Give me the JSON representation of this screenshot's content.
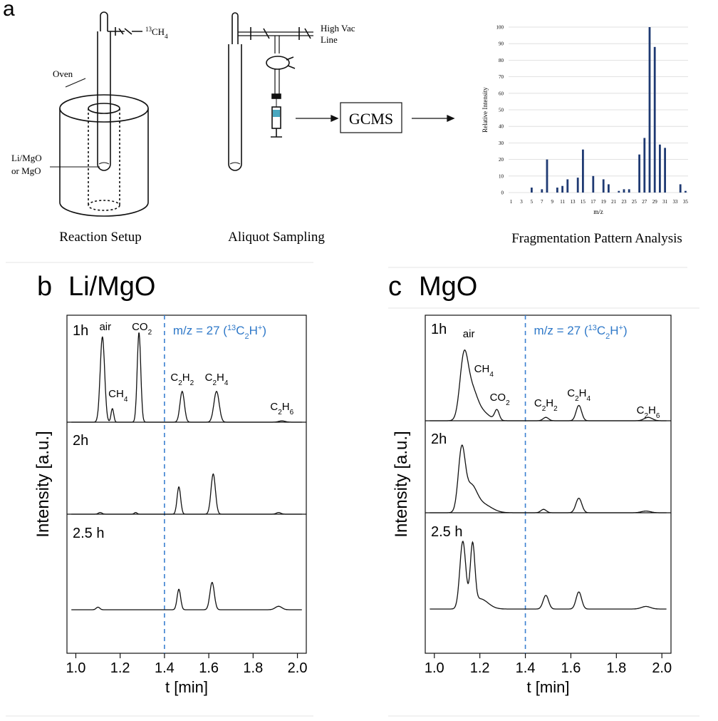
{
  "panel_a": {
    "letter": "a",
    "setup": {
      "gas_label_sup": "13",
      "gas_label_base": "CH",
      "gas_label_sub": "4",
      "oven_label": "Oven",
      "catalyst_line1": "Li/MgO",
      "catalyst_line2": "or MgO",
      "caption": "Reaction Setup"
    },
    "sampling": {
      "vac_line1": "High Vac",
      "vac_line2": "Line",
      "caption": "Aliquot Sampling"
    },
    "gcms_label": "GCMS",
    "fragmentation_caption": "Fragmentation Pattern Analysis"
  },
  "panel_b": {
    "letter": "b",
    "title": "Li/MgO",
    "annotation": "m/z = 27 (13C2H+)"
  },
  "panel_c": {
    "letter": "c",
    "title": "MgO",
    "annotation": "m/z = 27 (13C2H+)"
  },
  "chart_data": [
    {
      "id": "fragmentation",
      "type": "bar",
      "xlabel": "m/z",
      "ylabel": "Relative Intensity",
      "ylim": [
        0,
        100
      ],
      "yticks": [
        0,
        10,
        20,
        30,
        40,
        50,
        60,
        70,
        80,
        90,
        100
      ],
      "xticks": [
        1,
        3,
        5,
        7,
        9,
        11,
        13,
        15,
        17,
        19,
        21,
        23,
        25,
        27,
        29,
        31,
        33,
        35
      ],
      "grid": true,
      "bars": [
        {
          "x": 5,
          "y": 3
        },
        {
          "x": 7,
          "y": 2
        },
        {
          "x": 8,
          "y": 20
        },
        {
          "x": 10,
          "y": 3
        },
        {
          "x": 11,
          "y": 4
        },
        {
          "x": 12,
          "y": 8
        },
        {
          "x": 14,
          "y": 9
        },
        {
          "x": 15,
          "y": 26
        },
        {
          "x": 17,
          "y": 10
        },
        {
          "x": 19,
          "y": 8
        },
        {
          "x": 20,
          "y": 5
        },
        {
          "x": 22,
          "y": 1
        },
        {
          "x": 23,
          "y": 2
        },
        {
          "x": 24,
          "y": 2
        },
        {
          "x": 26,
          "y": 23
        },
        {
          "x": 27,
          "y": 33
        },
        {
          "x": 28,
          "y": 100
        },
        {
          "x": 29,
          "y": 88
        },
        {
          "x": 30,
          "y": 29
        },
        {
          "x": 31,
          "y": 27
        },
        {
          "x": 34,
          "y": 5
        },
        {
          "x": 35,
          "y": 1
        }
      ]
    },
    {
      "id": "li-mgo",
      "type": "line",
      "xlabel": "t [min]",
      "ylabel": "Intensity [a.u.]",
      "xlim": [
        0.96,
        2.04
      ],
      "xticks": [
        1.0,
        1.2,
        1.4,
        1.6,
        1.8,
        2.0
      ],
      "xtick_labels": [
        "1.0",
        "1.2",
        "1.4",
        "1.6",
        "1.8",
        "2.0"
      ],
      "vline_x": 1.4,
      "series": [
        {
          "name": "1h",
          "baseline": 0.0,
          "peaks": [
            [
              1.12,
              1.0,
              0.01
            ],
            [
              1.165,
              0.16,
              0.006
            ],
            [
              1.285,
              1.05,
              0.008
            ],
            [
              1.48,
              0.36,
              0.01
            ],
            [
              1.635,
              0.36,
              0.012
            ],
            [
              1.93,
              0.015,
              0.015
            ]
          ],
          "labels": [
            {
              "t": 1.12,
              "base": "air",
              "sub": ""
            },
            {
              "t": 1.165,
              "base": "CH",
              "sub": "4"
            },
            {
              "t": 1.285,
              "base": "CO",
              "sub": "2"
            },
            {
              "t": 1.48,
              "base": "C",
              "sub": "2",
              "base2": "H",
              "sub2": "2"
            },
            {
              "t": 1.635,
              "base": "C",
              "sub": "2",
              "base2": "H",
              "sub2": "4"
            },
            {
              "t": 1.93,
              "base": "C",
              "sub": "2",
              "base2": "H",
              "sub2": "6"
            }
          ]
        },
        {
          "name": "2h",
          "baseline": 0.0,
          "peaks": [
            [
              1.11,
              0.02,
              0.008
            ],
            [
              1.27,
              0.02,
              0.006
            ],
            [
              1.465,
              0.32,
              0.008
            ],
            [
              1.62,
              0.47,
              0.01
            ],
            [
              1.915,
              0.02,
              0.01
            ]
          ],
          "labels": []
        },
        {
          "name": "2.5 h",
          "baseline": 0.0,
          "peaks": [
            [
              1.1,
              0.03,
              0.008
            ],
            [
              1.465,
              0.24,
              0.008
            ],
            [
              1.615,
              0.32,
              0.01
            ],
            [
              1.915,
              0.04,
              0.015
            ]
          ],
          "labels": []
        }
      ]
    },
    {
      "id": "mgo",
      "type": "line",
      "xlabel": "t [min]",
      "ylabel": "Intensity [a.u.]",
      "xlim": [
        0.96,
        2.04
      ],
      "xticks": [
        1.0,
        1.2,
        1.4,
        1.6,
        1.8,
        2.0
      ],
      "xtick_labels": [
        "1.0",
        "1.2",
        "1.4",
        "1.6",
        "1.8",
        "2.0"
      ],
      "vline_x": 1.4,
      "series": [
        {
          "name": "1h",
          "baseline": 0.0,
          "peaks": [
            [
              1.13,
              0.72,
              0.018
            ],
            [
              1.165,
              0.28,
              0.022
            ],
            [
              1.2,
              0.12,
              0.035
            ],
            [
              1.275,
              0.12,
              0.01
            ],
            [
              1.49,
              0.04,
              0.012
            ],
            [
              1.635,
              0.18,
              0.012
            ],
            [
              1.94,
              0.04,
              0.018
            ]
          ],
          "labels": [
            {
              "t": 1.12,
              "base": "air",
              "sub": ""
            },
            {
              "t": 1.18,
              "base": "CH",
              "sub": "4"
            },
            {
              "t": 1.275,
              "base": "CO",
              "sub": "2"
            },
            {
              "t": 1.49,
              "base": "C",
              "sub": "2",
              "base2": "H",
              "sub2": "2"
            },
            {
              "t": 1.635,
              "base": "C",
              "sub": "2",
              "base2": "H",
              "sub2": "4"
            },
            {
              "t": 1.94,
              "base": "C",
              "sub": "2",
              "base2": "H",
              "sub2": "6"
            }
          ]
        },
        {
          "name": "2h",
          "baseline": 0.0,
          "peaks": [
            [
              1.12,
              0.7,
              0.015
            ],
            [
              1.16,
              0.28,
              0.025
            ],
            [
              1.21,
              0.1,
              0.04
            ],
            [
              1.48,
              0.04,
              0.012
            ],
            [
              1.635,
              0.17,
              0.013
            ],
            [
              1.93,
              0.02,
              0.02
            ]
          ],
          "labels": []
        },
        {
          "name": "2.5 h",
          "baseline": 0.0,
          "peaks": [
            [
              1.125,
              0.78,
              0.013
            ],
            [
              1.168,
              0.7,
              0.01
            ],
            [
              1.2,
              0.12,
              0.035
            ],
            [
              1.49,
              0.16,
              0.012
            ],
            [
              1.635,
              0.2,
              0.012
            ],
            [
              1.93,
              0.03,
              0.02
            ]
          ],
          "labels": []
        }
      ]
    }
  ]
}
